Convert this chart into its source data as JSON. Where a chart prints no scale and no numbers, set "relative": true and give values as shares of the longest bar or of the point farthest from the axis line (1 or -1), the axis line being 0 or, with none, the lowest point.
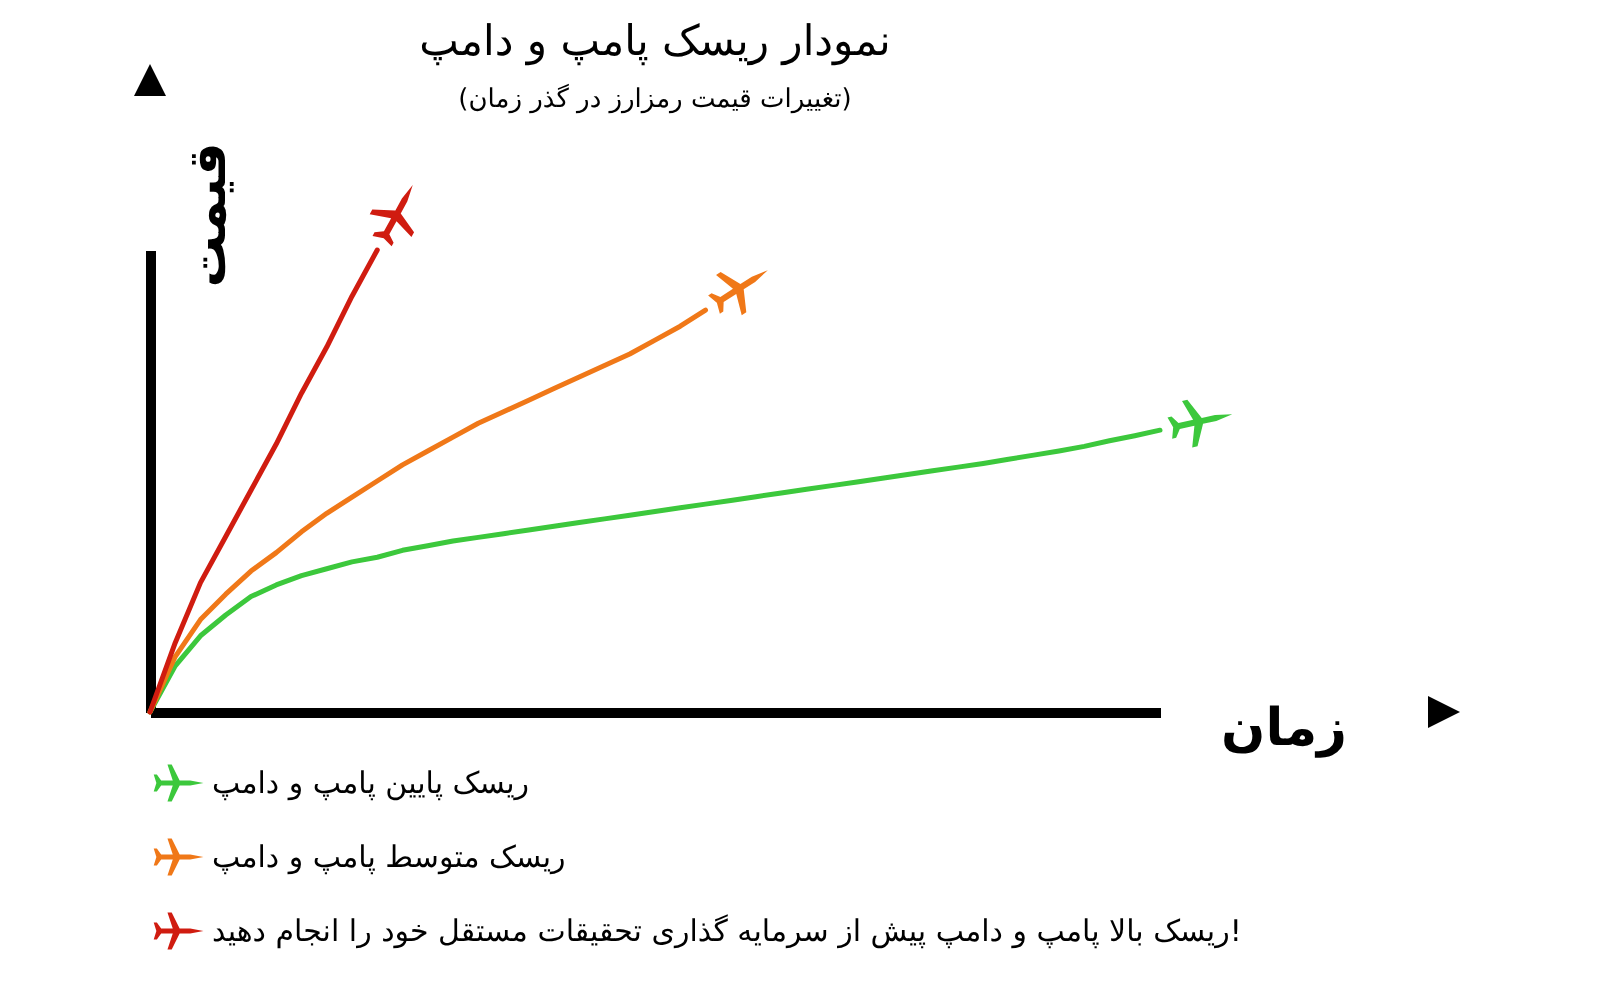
{
  "chart_data": {
    "type": "line",
    "title": "نمودار ریسک پامپ و دامپ",
    "subtitle": "(تغییرات قیمت رمزارز در گذر زمان)",
    "xlabel": "زمان",
    "ylabel": "قیمت",
    "relative": true,
    "legend": "bottom",
    "categories": [
      null,
      null,
      null,
      null,
      null,
      null,
      null,
      null,
      null,
      null,
      null,
      null,
      null,
      null,
      null,
      null,
      null,
      null,
      null,
      null,
      null,
      null,
      null,
      null,
      null,
      null,
      null,
      null,
      null,
      null,
      null,
      null,
      null,
      null,
      null,
      null,
      null,
      null,
      null,
      null,
      null
    ],
    "series": [
      {
        "name": "ریسک پایین پامپ و دامپ",
        "color": "#3cc83c",
        "values": [
          0,
          0.1,
          0.165,
          0.21,
          0.25,
          0.275,
          0.295,
          0.31,
          0.325,
          0.335,
          0.35,
          0.36,
          0.37,
          0.378,
          0.386,
          0.394,
          0.402,
          0.41,
          0.418,
          0.426,
          0.434,
          0.442,
          0.45,
          0.458,
          0.466,
          0.474,
          0.482,
          0.49,
          0.498,
          0.506,
          0.514,
          0.522,
          0.53,
          0.538,
          0.547,
          0.556,
          0.565,
          0.575,
          0.587,
          0.598,
          0.61
        ]
      },
      {
        "name": "ریسک متوسط پامپ و دامپ",
        "color": "#f07818",
        "values": [
          0,
          0.12,
          0.2,
          0.255,
          0.305,
          0.345,
          0.39,
          0.43,
          0.465,
          0.5,
          0.535,
          0.565,
          0.595,
          0.625,
          0.65,
          0.675,
          0.7,
          0.725,
          0.75,
          0.775,
          0.805,
          0.835,
          0.87,
          null,
          null,
          null,
          null,
          null,
          null,
          null,
          null,
          null,
          null,
          null,
          null,
          null,
          null,
          null,
          null,
          null,
          null
        ]
      },
      {
        "name": "ریسک بالا پامپ و دامپ پیش از سرمایه گذاری تحقیقات مستقل خود را انجام دهید!",
        "color": "#d01c10",
        "values": [
          0,
          0.15,
          0.28,
          0.38,
          0.48,
          0.58,
          0.69,
          0.79,
          0.9,
          1,
          null,
          null,
          null,
          null,
          null,
          null,
          null,
          null,
          null,
          null,
          null,
          null,
          null,
          null,
          null,
          null,
          null,
          null,
          null,
          null,
          null,
          null,
          null,
          null,
          null,
          null,
          null,
          null,
          null,
          null,
          null
        ]
      }
    ]
  }
}
